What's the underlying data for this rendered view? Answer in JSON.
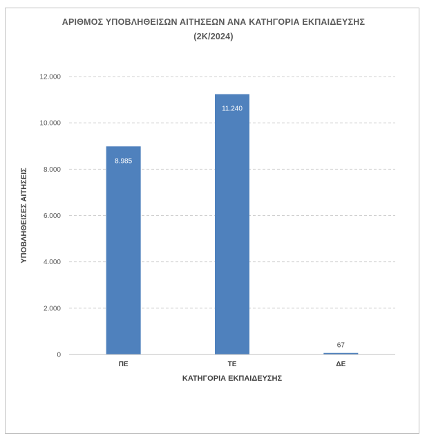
{
  "chart_data": {
    "type": "bar",
    "title": "ΑΡΙΘΜΟΣ ΥΠΟΒΛΗΘΕΙΣΩΝ ΑΙΤΗΣΕΩΝ ΑΝΑ ΚΑΤΗΓΟΡΙΑ ΕΚΠΑΙΔΕΥΣΗΣ",
    "subtitle": "(2Κ/2024)",
    "xlabel": "ΚΑΤΗΓΟΡΙΑ ΕΚΠΑΙΔΕΥΣΗΣ",
    "ylabel": "ΥΠΟΒΛΗΘΕΙΣΕΣ ΑΙΤΗΣΕΙΣ",
    "categories": [
      "ΠΕ",
      "ΤΕ",
      "ΔΕ"
    ],
    "values": [
      8985,
      11240,
      67
    ],
    "data_labels": [
      "8.985",
      "11.240",
      "67"
    ],
    "ylim": [
      0,
      12000
    ],
    "yticks": [
      0,
      2000,
      4000,
      6000,
      8000,
      10000,
      12000
    ],
    "ytick_labels": [
      "0",
      "2.000",
      "4.000",
      "6.000",
      "8.000",
      "10.000",
      "12.000"
    ],
    "grid": true,
    "bar_color": "#4f81bd",
    "legend": "none"
  }
}
